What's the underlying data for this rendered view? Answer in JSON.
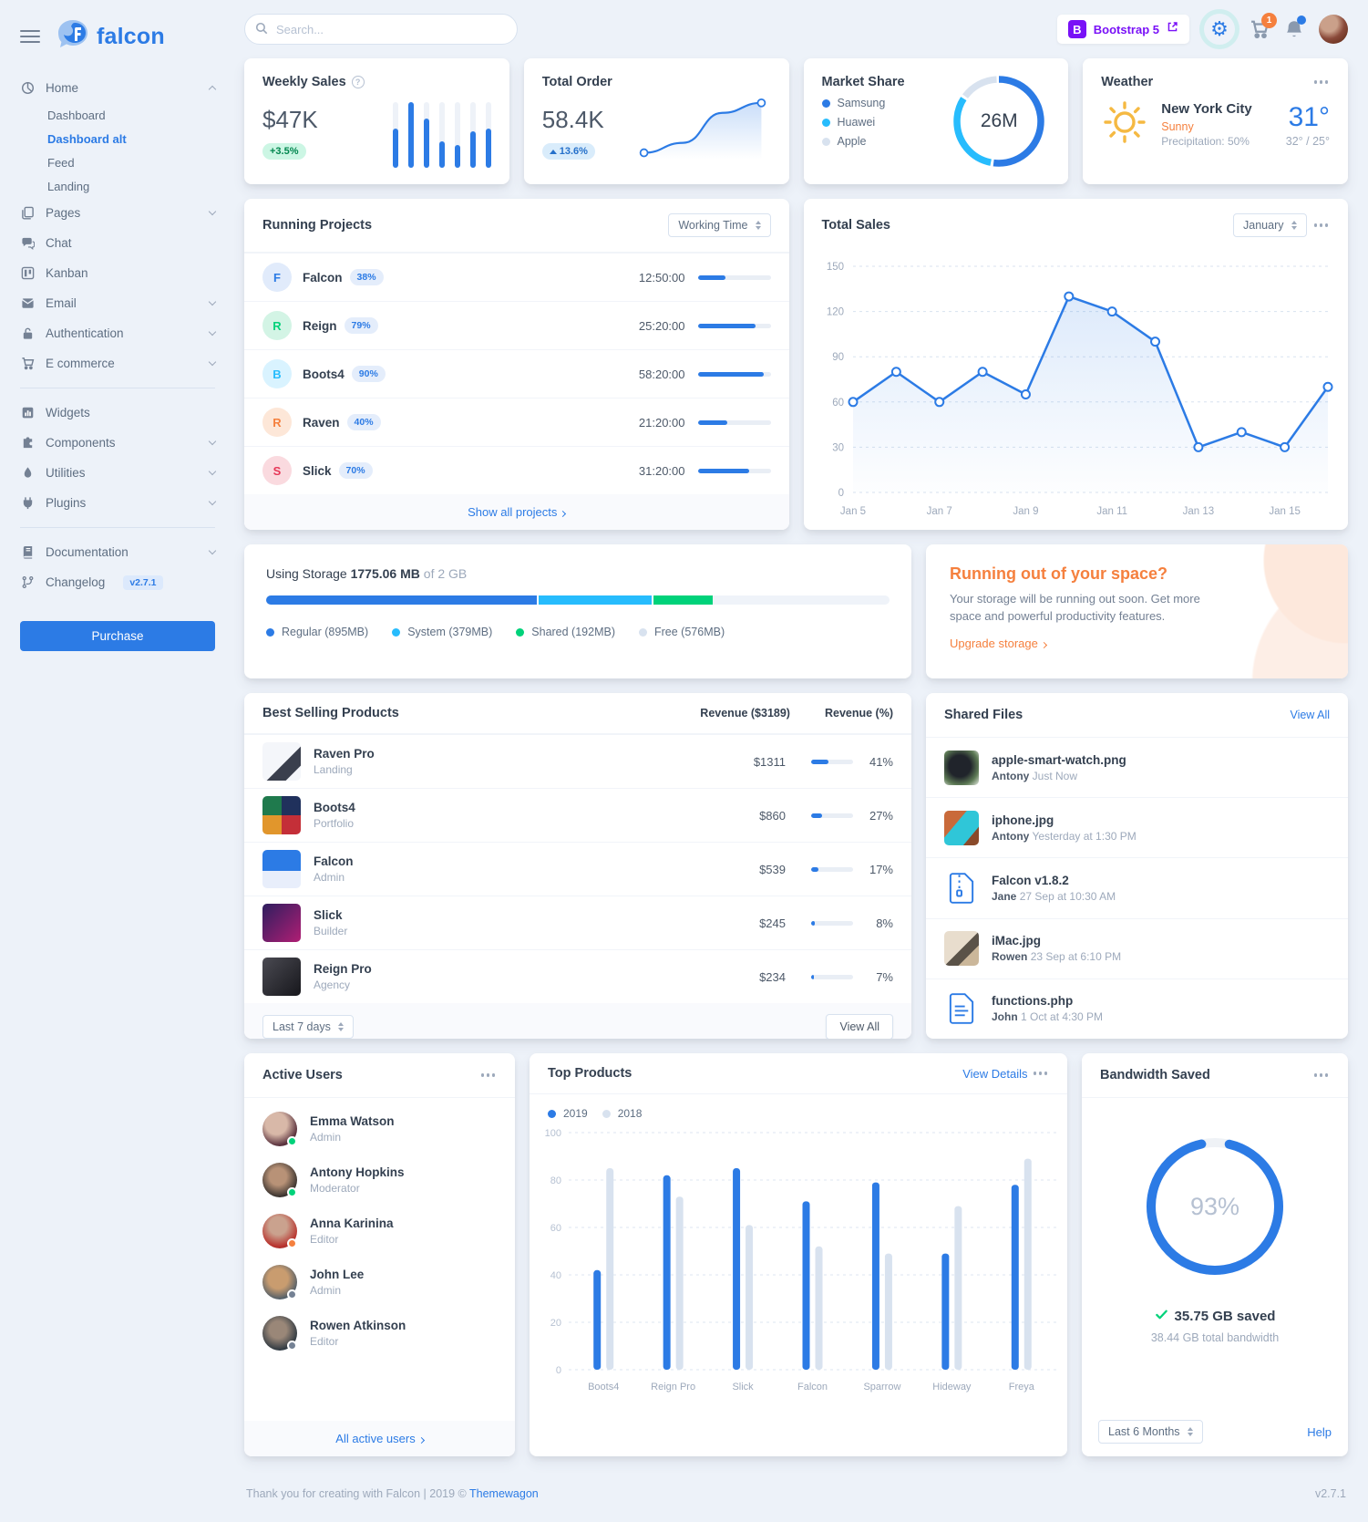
{
  "app": {
    "brand": "falcon"
  },
  "topnav": {
    "search_placeholder": "Search...",
    "bootstrap_label": "Bootstrap 5",
    "cart_badge": "1"
  },
  "sidebar": {
    "home": "Home",
    "home_children": {
      "dashboard": "Dashboard",
      "dashboard_alt": "Dashboard alt",
      "feed": "Feed",
      "landing": "Landing"
    },
    "pages": "Pages",
    "chat": "Chat",
    "kanban": "Kanban",
    "email": "Email",
    "authentication": "Authentication",
    "ecommerce": "E commerce",
    "widgets": "Widgets",
    "components": "Components",
    "utilities": "Utilities",
    "plugins": "Plugins",
    "documentation": "Documentation",
    "changelog": "Changelog",
    "changelog_badge": "v2.7.1",
    "purchase": "Purchase"
  },
  "weekly_sales": {
    "title": "Weekly Sales",
    "value": "$47K",
    "badge": "+3.5%"
  },
  "total_order": {
    "title": "Total Order",
    "value": "58.4K",
    "badge": "13.6%"
  },
  "market_share": {
    "title": "Market Share",
    "center": "26M"
  },
  "weather": {
    "title": "Weather",
    "city": "New York City",
    "condition": "Sunny",
    "precipitation": "Precipitation: 50%",
    "temp": "31°",
    "hi_lo": "32° / 25°"
  },
  "running_projects": {
    "title": "Running Projects",
    "select": "Working Time",
    "rows": [
      {
        "initial": "F",
        "name": "Falcon",
        "badge": "38%",
        "time": "12:50:00",
        "progress": 38
      },
      {
        "initial": "R",
        "name": "Reign",
        "badge": "79%",
        "time": "25:20:00",
        "progress": 79
      },
      {
        "initial": "B",
        "name": "Boots4",
        "badge": "90%",
        "time": "58:20:00",
        "progress": 90
      },
      {
        "initial": "R",
        "name": "Raven",
        "badge": "40%",
        "time": "21:20:00",
        "progress": 40
      },
      {
        "initial": "S",
        "name": "Slick",
        "badge": "70%",
        "time": "31:20:00",
        "progress": 70
      }
    ],
    "footer_link": "Show all projects"
  },
  "total_sales": {
    "title": "Total Sales",
    "select": "January"
  },
  "storage": {
    "prefix": "Using Storage",
    "used": "1775.06 MB",
    "suffix": "of 2 GB",
    "segments": [
      {
        "label": "Regular (895MB)",
        "color": "#2c7be5",
        "pct": 43.7
      },
      {
        "label": "System (379MB)",
        "color": "#27bcfd",
        "pct": 18.5
      },
      {
        "label": "Shared (192MB)",
        "color": "#00d27a",
        "pct": 9.4
      },
      {
        "label": "Free (576MB)",
        "color": "#d8e2ef",
        "pct": 28.4
      }
    ]
  },
  "space": {
    "title": "Running out of your space?",
    "body": "Your storage will be running out soon. Get more space and powerful productivity features.",
    "link": "Upgrade storage"
  },
  "best_selling": {
    "title": "Best Selling Products",
    "col_revenue": "Revenue ($3189)",
    "col_pct": "Revenue (%)",
    "rows": [
      {
        "name": "Raven Pro",
        "category": "Landing",
        "revenue": "$1311",
        "pct": "41%",
        "bar": 41
      },
      {
        "name": "Boots4",
        "category": "Portfolio",
        "revenue": "$860",
        "pct": "27%",
        "bar": 27
      },
      {
        "name": "Falcon",
        "category": "Admin",
        "revenue": "$539",
        "pct": "17%",
        "bar": 17
      },
      {
        "name": "Slick",
        "category": "Builder",
        "revenue": "$245",
        "pct": "8%",
        "bar": 8
      },
      {
        "name": "Reign Pro",
        "category": "Agency",
        "revenue": "$234",
        "pct": "7%",
        "bar": 7
      }
    ],
    "select": "Last 7 days",
    "view_all": "View All"
  },
  "shared_files": {
    "title": "Shared Files",
    "view_all": "View All",
    "files": [
      {
        "name": "apple-smart-watch.png",
        "author": "Antony",
        "time": "Just Now"
      },
      {
        "name": "iphone.jpg",
        "author": "Antony",
        "time": "Yesterday at 1:30 PM"
      },
      {
        "name": "Falcon v1.8.2",
        "author": "Jane",
        "time": "27 Sep at 10:30 AM"
      },
      {
        "name": "iMac.jpg",
        "author": "Rowen",
        "time": "23 Sep at 6:10 PM"
      },
      {
        "name": "functions.php",
        "author": "John",
        "time": "1 Oct at 4:30 PM"
      }
    ]
  },
  "active_users": {
    "title": "Active Users",
    "users": [
      {
        "name": "Emma Watson",
        "role": "Admin",
        "status": "#00d27a"
      },
      {
        "name": "Antony Hopkins",
        "role": "Moderator",
        "status": "#00d27a"
      },
      {
        "name": "Anna Karinina",
        "role": "Editor",
        "status": "#f5803e"
      },
      {
        "name": "John Lee",
        "role": "Admin",
        "status": "#748194"
      },
      {
        "name": "Rowen Atkinson",
        "role": "Editor",
        "status": "#748194"
      }
    ],
    "footer_link": "All active users"
  },
  "top_products": {
    "title": "Top Products",
    "view_details": "View Details"
  },
  "bandwidth": {
    "title": "Bandwidth Saved",
    "pct": "93%",
    "saved": "35.75 GB saved",
    "total": "38.44 GB total bandwidth",
    "select": "Last 6 Months",
    "help": "Help"
  },
  "footer": {
    "text": "Thank you for creating with Falcon | 2019 ©",
    "link": "Themewagon",
    "version": "v2.7.1"
  },
  "chart_data": [
    {
      "id": "weekly_sales_bars",
      "type": "bar",
      "values": [
        120,
        200,
        150,
        80,
        70,
        110,
        120
      ],
      "ylim": [
        0,
        200
      ],
      "color": "#2c7be5"
    },
    {
      "id": "total_order_line",
      "type": "line",
      "values": [
        20,
        40,
        100,
        120
      ],
      "color": "#2c7be5"
    },
    {
      "id": "market_share_donut",
      "type": "pie",
      "labels": [
        "Samsung",
        "Huawei",
        "Apple"
      ],
      "values": [
        53,
        32,
        15
      ],
      "colors": [
        "#2c7be5",
        "#27bcfd",
        "#d8e2ef"
      ],
      "center_label": "26M"
    },
    {
      "id": "total_sales_line",
      "type": "line",
      "x": [
        "Jan 5",
        "Jan 6",
        "Jan 7",
        "Jan 8",
        "Jan 9",
        "Jan 10",
        "Jan 11",
        "Jan 12",
        "Jan 13",
        "Jan 14",
        "Jan 15",
        "Jan 16"
      ],
      "x_tick_labels": [
        "Jan 5",
        "Jan 7",
        "Jan 9",
        "Jan 11",
        "Jan 13",
        "Jan 15"
      ],
      "values": [
        60,
        80,
        60,
        80,
        65,
        130,
        120,
        100,
        30,
        40,
        30,
        70
      ],
      "ylim": [
        0,
        150
      ],
      "yticks": [
        0,
        30,
        60,
        90,
        120,
        150
      ],
      "color": "#2c7be5",
      "grid": "dashed"
    },
    {
      "id": "top_products_bars",
      "type": "bar",
      "categories": [
        "Boots4",
        "Reign Pro",
        "Slick",
        "Falcon",
        "Sparrow",
        "Hideway",
        "Freya"
      ],
      "series": [
        {
          "name": "2019",
          "color": "#2c7be5",
          "values": [
            42,
            82,
            85,
            71,
            79,
            49,
            78
          ]
        },
        {
          "name": "2018",
          "color": "#d8e2ef",
          "values": [
            85,
            73,
            61,
            52,
            49,
            69,
            89
          ]
        }
      ],
      "ylim": [
        0,
        100
      ],
      "yticks": [
        0,
        20,
        40,
        60,
        80,
        100
      ],
      "grid": "dashed",
      "legend_position": "top-left"
    },
    {
      "id": "bandwidth_gauge",
      "type": "pie",
      "values": [
        93,
        7
      ],
      "colors": [
        "#2c7be5",
        "#eff2f6"
      ],
      "center_label": "93%"
    }
  ]
}
